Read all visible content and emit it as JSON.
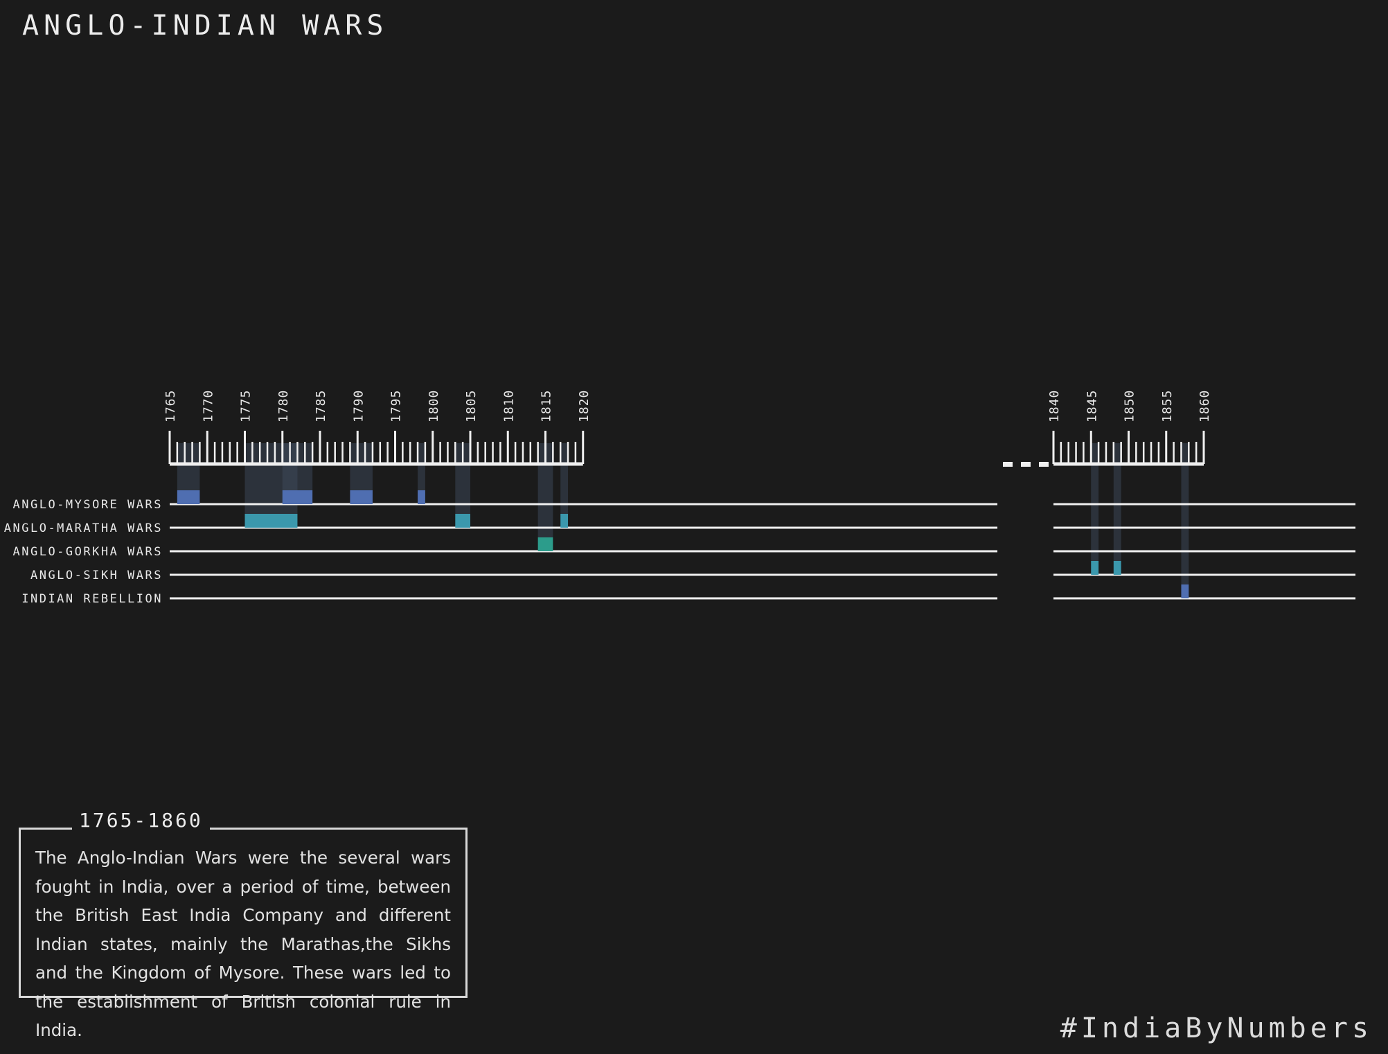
{
  "title": "ANGLO-INDIAN WARS",
  "chart_data": {
    "type": "timeline",
    "title": "ANGLO-INDIAN WARS",
    "axis_segments": [
      {
        "range": [
          1765,
          1820
        ],
        "ticks": [
          1765,
          1770,
          1775,
          1780,
          1785,
          1790,
          1795,
          1800,
          1805,
          1810,
          1815,
          1820
        ]
      },
      {
        "range": [
          1840,
          1860
        ],
        "ticks": [
          1840,
          1845,
          1850,
          1855,
          1860
        ]
      }
    ],
    "axis_break": "...",
    "rows": [
      {
        "label": "ANGLO-MYSORE WARS",
        "color": "#4f6eb1",
        "wars": [
          [
            1766,
            1769
          ],
          [
            1780,
            1784
          ],
          [
            1789,
            1792
          ],
          [
            1798,
            1799
          ]
        ]
      },
      {
        "label": "ANGLO-MARATHA WARS",
        "color": "#3b98ad",
        "wars": [
          [
            1775,
            1782
          ],
          [
            1803,
            1805
          ],
          [
            1817,
            1818
          ]
        ]
      },
      {
        "label": "ANGLO-GORKHA WARS",
        "color": "#2c9c8b",
        "wars": [
          [
            1814,
            1816
          ]
        ]
      },
      {
        "label": "ANGLO-SIKH WARS",
        "color": "#3b98ad",
        "wars": [
          [
            1845,
            1846
          ],
          [
            1848,
            1849
          ]
        ]
      },
      {
        "label": "INDIAN REBELLION",
        "color": "#4f6eb1",
        "wars": [
          [
            1857,
            1858
          ]
        ]
      }
    ]
  },
  "description": {
    "period": "1765-1860",
    "text": "The Anglo-Indian Wars were the several wars fought in India, over a period of time, between the British East India Company and different Indian states, mainly the Marathas,the Sikhs and the Kingdom of Mysore. These wars led to the establishment of British colonial rule in India."
  },
  "footer": {
    "hashtag": "#IndiaByNumbers"
  }
}
